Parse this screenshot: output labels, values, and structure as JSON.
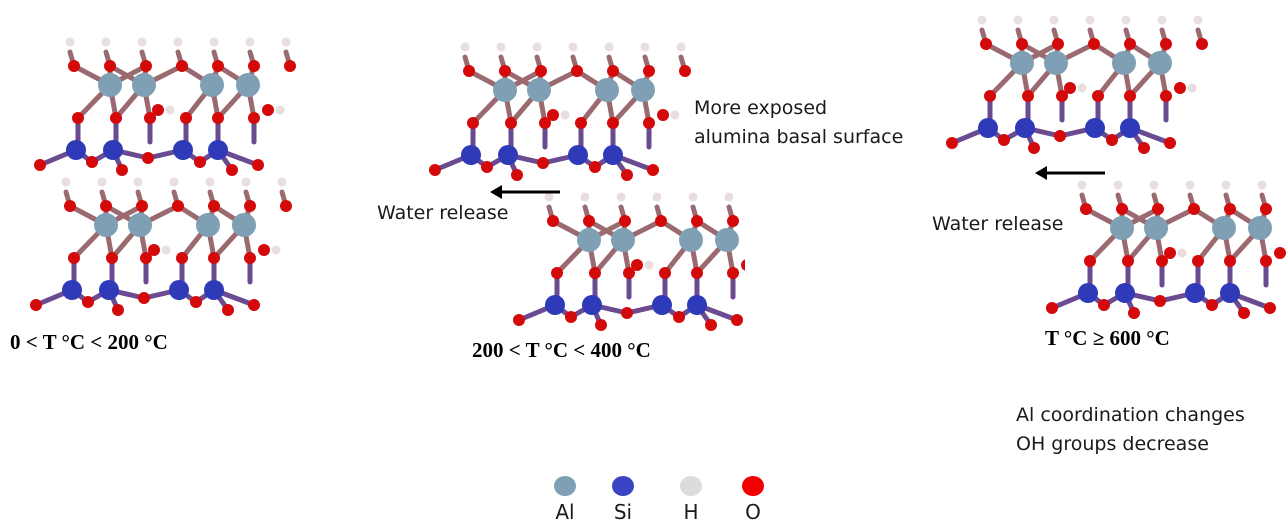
{
  "stages": [
    {
      "temperature": "0 < T °C < 200 °C"
    },
    {
      "temperature": "200 < T °C < 400 °C",
      "arrow_label": "Water release",
      "note": [
        "More exposed",
        "alumina basal surface"
      ]
    },
    {
      "temperature": "T °C ≥ 600 °C",
      "arrow_label": "Water release",
      "note": [
        "Al coordination changes",
        "OH groups decrease"
      ]
    }
  ],
  "legend": [
    {
      "label": "Al",
      "color": "#7f9fb4"
    },
    {
      "label": "Si",
      "color": "#3b45c4"
    },
    {
      "label": "H",
      "color": "#dcdcdc"
    },
    {
      "label": "O",
      "color": "#f20000"
    }
  ],
  "atom_colors": {
    "Al": "#7f9fb4",
    "Si": "#2f3ab8",
    "H": "#e8dede",
    "O": "#d40a0a",
    "bond_al_o": "#9a6a70",
    "bond_si_o": "#6a4a90",
    "arrow": "#000000"
  }
}
